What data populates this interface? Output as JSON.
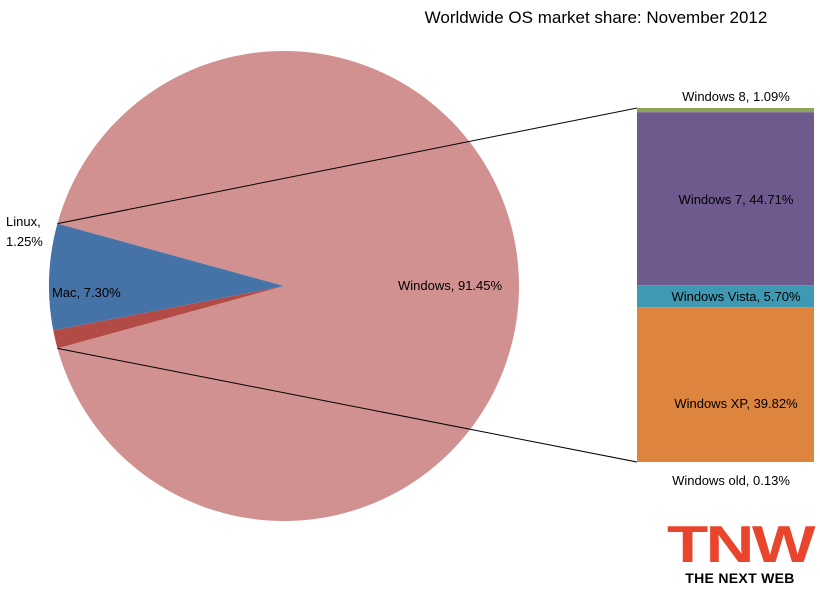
{
  "chart_data": [
    {
      "type": "pie",
      "title": "Worldwide OS market share: November 2012",
      "slices": [
        {
          "label": "Windows, 91.45%",
          "value": 91.45,
          "color": "#d19190"
        },
        {
          "label": "Linux, 1.25%",
          "value": 1.25,
          "color": "#b24b45"
        },
        {
          "label": "Mac, 7.30%",
          "value": 7.3,
          "color": "#4573a7"
        }
      ]
    },
    {
      "type": "bar",
      "stacked": true,
      "breakdown_of": "Windows, 91.45%",
      "segments": [
        {
          "label": "Windows 8, 1.09%",
          "value": 1.09,
          "color": "#8da35a"
        },
        {
          "label": "Windows 7, 44.71%",
          "value": 44.71,
          "color": "#6f5a8d"
        },
        {
          "label": "Windows Vista, 5.70%",
          "value": 5.7,
          "color": "#4099b2"
        },
        {
          "label": "Windows XP, 39.82%",
          "value": 39.82,
          "color": "#dd853f"
        },
        {
          "label": "Windows old, 0.13%",
          "value": 0.13,
          "color": "#dd853f"
        }
      ]
    }
  ],
  "logo": {
    "main": "TNW",
    "sub": "THE NEXT WEB"
  }
}
